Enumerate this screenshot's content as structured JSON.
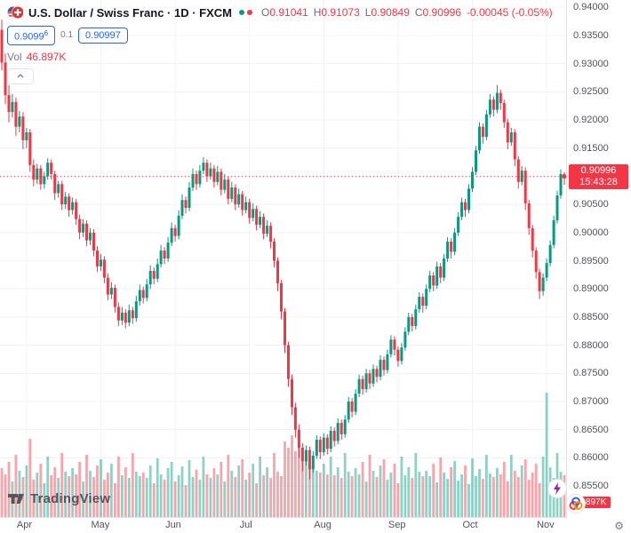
{
  "header": {
    "symbol_title": "U.S. Dollar / Swiss Franc · 1D · FXCM",
    "ohlc": {
      "o_label": "O",
      "o": "0.91041",
      "h_label": "H",
      "h": "0.91073",
      "l_label": "L",
      "l": "0.90849",
      "c_label": "C",
      "c": "0.90996",
      "change": "-0.00045 (-0.05%)"
    },
    "sell_price_main": "0.9099",
    "sell_price_sup": "6",
    "spread": "0.1",
    "buy_price": "0.90997",
    "vol_label": "Vol",
    "vol_value": "46.897K"
  },
  "price_scale": {
    "ticks": [
      0.94,
      0.935,
      0.93,
      0.925,
      0.92,
      0.915,
      0.91,
      0.905,
      0.9,
      0.895,
      0.89,
      0.885,
      0.88,
      0.875,
      0.87,
      0.865,
      0.86,
      0.855
    ],
    "current_price_label": "0.90996",
    "countdown": "15:43:28",
    "volume_axis_label": "46.897K"
  },
  "time_scale": {
    "months": [
      {
        "label": "Apr",
        "index": 7
      },
      {
        "label": "May",
        "index": 28
      },
      {
        "label": "Jun",
        "index": 49
      },
      {
        "label": "Jul",
        "index": 70
      },
      {
        "label": "Aug",
        "index": 91
      },
      {
        "label": "Sep",
        "index": 112
      },
      {
        "label": "Oct",
        "index": 133
      },
      {
        "label": "Nov",
        "index": 154
      }
    ]
  },
  "footer": {
    "logo_text": "TradingView"
  },
  "colors": {
    "up": "#089981",
    "down": "#f23645",
    "vol_up": "rgba(8,153,129,0.45)",
    "vol_down": "rgba(242,54,69,0.45)",
    "grid": "#f0f3fa",
    "accent_blue": "#2962ff",
    "label_red": "#f23645"
  },
  "chart_data": {
    "type": "candlestick",
    "symbol": "U.S. Dollar / Swiss Franc",
    "timeframe": "1D",
    "exchange": "FXCM",
    "price_min": 0.8495,
    "price_max": 0.9413,
    "current_price": 0.90996,
    "current_volume_k": 46.897,
    "candles": [
      [
        0.936,
        0.9378,
        0.9288,
        0.9302
      ],
      [
        0.9302,
        0.9318,
        0.9228,
        0.9244
      ],
      [
        0.9244,
        0.9262,
        0.9196,
        0.9214
      ],
      [
        0.9214,
        0.9246,
        0.9204,
        0.9232
      ],
      [
        0.9232,
        0.924,
        0.9172,
        0.9188
      ],
      [
        0.9188,
        0.9216,
        0.9178,
        0.9206
      ],
      [
        0.9206,
        0.9214,
        0.9148,
        0.9164
      ],
      [
        0.9164,
        0.9186,
        0.915,
        0.9178
      ],
      [
        0.9178,
        0.9184,
        0.9108,
        0.912
      ],
      [
        0.912,
        0.913,
        0.9082,
        0.9094
      ],
      [
        0.9094,
        0.9122,
        0.9086,
        0.9114
      ],
      [
        0.9114,
        0.912,
        0.9076,
        0.9086
      ],
      [
        0.9086,
        0.9108,
        0.9078,
        0.91
      ],
      [
        0.91,
        0.9132,
        0.9094,
        0.9124
      ],
      [
        0.9124,
        0.913,
        0.9094,
        0.9104
      ],
      [
        0.9104,
        0.911,
        0.9058,
        0.907
      ],
      [
        0.907,
        0.9092,
        0.9062,
        0.9086
      ],
      [
        0.9086,
        0.9092,
        0.904,
        0.905
      ],
      [
        0.905,
        0.9072,
        0.9042,
        0.9064
      ],
      [
        0.9064,
        0.907,
        0.9028,
        0.904
      ],
      [
        0.904,
        0.9062,
        0.9032,
        0.9054
      ],
      [
        0.9054,
        0.906,
        0.9014,
        0.9024
      ],
      [
        0.9024,
        0.9032,
        0.8988,
        0.9
      ],
      [
        0.9,
        0.9024,
        0.8992,
        0.9016
      ],
      [
        0.9016,
        0.9022,
        0.8976,
        0.8986
      ],
      [
        0.8986,
        0.9008,
        0.8978,
        0.9
      ],
      [
        0.9,
        0.9006,
        0.8958,
        0.8968
      ],
      [
        0.8968,
        0.8976,
        0.893,
        0.894
      ],
      [
        0.894,
        0.8962,
        0.8932,
        0.8952
      ],
      [
        0.8952,
        0.8958,
        0.891,
        0.892
      ],
      [
        0.892,
        0.8928,
        0.888,
        0.889
      ],
      [
        0.889,
        0.8912,
        0.8882,
        0.8902
      ],
      [
        0.8902,
        0.8908,
        0.8858,
        0.8868
      ],
      [
        0.8868,
        0.8876,
        0.8834,
        0.8844
      ],
      [
        0.8844,
        0.8868,
        0.8836,
        0.8858
      ],
      [
        0.8858,
        0.8864,
        0.883,
        0.884
      ],
      [
        0.884,
        0.8872,
        0.8834,
        0.8862
      ],
      [
        0.8862,
        0.8868,
        0.8838,
        0.8848
      ],
      [
        0.8848,
        0.8888,
        0.8842,
        0.8878
      ],
      [
        0.8878,
        0.8908,
        0.887,
        0.8898
      ],
      [
        0.8898,
        0.8904,
        0.8874,
        0.8884
      ],
      [
        0.8884,
        0.8918,
        0.8878,
        0.8908
      ],
      [
        0.8908,
        0.8942,
        0.89,
        0.8932
      ],
      [
        0.8932,
        0.8938,
        0.8908,
        0.8918
      ],
      [
        0.8918,
        0.8954,
        0.8912,
        0.8944
      ],
      [
        0.8944,
        0.8978,
        0.8938,
        0.8968
      ],
      [
        0.8968,
        0.8974,
        0.8944,
        0.8954
      ],
      [
        0.8954,
        0.8992,
        0.8948,
        0.8982
      ],
      [
        0.8982,
        0.9018,
        0.8976,
        0.9008
      ],
      [
        0.9008,
        0.9014,
        0.8984,
        0.8994
      ],
      [
        0.8994,
        0.904,
        0.8988,
        0.903
      ],
      [
        0.903,
        0.9068,
        0.9024,
        0.9058
      ],
      [
        0.9058,
        0.9064,
        0.9034,
        0.9044
      ],
      [
        0.9044,
        0.909,
        0.9038,
        0.908
      ],
      [
        0.908,
        0.9114,
        0.9074,
        0.9104
      ],
      [
        0.9104,
        0.911,
        0.9076,
        0.9086
      ],
      [
        0.9086,
        0.912,
        0.908,
        0.911
      ],
      [
        0.911,
        0.9134,
        0.9104,
        0.9124
      ],
      [
        0.9124,
        0.913,
        0.909,
        0.91
      ],
      [
        0.91,
        0.9124,
        0.9094,
        0.9114
      ],
      [
        0.9114,
        0.912,
        0.908,
        0.909
      ],
      [
        0.909,
        0.9118,
        0.9084,
        0.9108
      ],
      [
        0.9108,
        0.9114,
        0.9066,
        0.9076
      ],
      [
        0.9076,
        0.9104,
        0.907,
        0.9094
      ],
      [
        0.9094,
        0.91,
        0.905,
        0.906
      ],
      [
        0.906,
        0.909,
        0.9054,
        0.908
      ],
      [
        0.908,
        0.9086,
        0.904,
        0.905
      ],
      [
        0.905,
        0.9078,
        0.9044,
        0.9068
      ],
      [
        0.9068,
        0.9074,
        0.903,
        0.904
      ],
      [
        0.904,
        0.9064,
        0.9034,
        0.9054
      ],
      [
        0.9054,
        0.906,
        0.9016,
        0.9026
      ],
      [
        0.9026,
        0.9052,
        0.902,
        0.9042
      ],
      [
        0.9042,
        0.9048,
        0.9004,
        0.9014
      ],
      [
        0.9014,
        0.9038,
        0.9008,
        0.9028
      ],
      [
        0.9028,
        0.9034,
        0.8988,
        0.8998
      ],
      [
        0.8998,
        0.9022,
        0.8992,
        0.9012
      ],
      [
        0.9012,
        0.9018,
        0.8972,
        0.8984
      ],
      [
        0.8984,
        0.899,
        0.8938,
        0.895
      ],
      [
        0.895,
        0.8956,
        0.8896,
        0.891
      ],
      [
        0.891,
        0.8916,
        0.8846,
        0.886
      ],
      [
        0.886,
        0.8866,
        0.8786,
        0.88
      ],
      [
        0.88,
        0.8806,
        0.8726,
        0.874
      ],
      [
        0.874,
        0.8748,
        0.8676,
        0.869
      ],
      [
        0.869,
        0.8698,
        0.8636,
        0.865
      ],
      [
        0.865,
        0.866,
        0.86,
        0.8618
      ],
      [
        0.8618,
        0.8626,
        0.8576,
        0.8594
      ],
      [
        0.8594,
        0.8622,
        0.8586,
        0.8614
      ],
      [
        0.8614,
        0.862,
        0.8562,
        0.858
      ],
      [
        0.858,
        0.8612,
        0.8574,
        0.8604
      ],
      [
        0.8604,
        0.864,
        0.8598,
        0.8632
      ],
      [
        0.8632,
        0.8638,
        0.8598,
        0.861
      ],
      [
        0.861,
        0.8644,
        0.8604,
        0.8636
      ],
      [
        0.8636,
        0.8642,
        0.8606,
        0.8616
      ],
      [
        0.8616,
        0.8656,
        0.861,
        0.8648
      ],
      [
        0.8648,
        0.8654,
        0.862,
        0.863
      ],
      [
        0.863,
        0.867,
        0.8624,
        0.8662
      ],
      [
        0.8662,
        0.8668,
        0.8632,
        0.8642
      ],
      [
        0.8642,
        0.8676,
        0.8636,
        0.8668
      ],
      [
        0.8668,
        0.8708,
        0.8662,
        0.87
      ],
      [
        0.87,
        0.8706,
        0.8672,
        0.8682
      ],
      [
        0.8682,
        0.8722,
        0.8676,
        0.8714
      ],
      [
        0.8714,
        0.8748,
        0.8708,
        0.874
      ],
      [
        0.874,
        0.8746,
        0.8712,
        0.8722
      ],
      [
        0.8722,
        0.8758,
        0.8716,
        0.875
      ],
      [
        0.875,
        0.8756,
        0.8722,
        0.8732
      ],
      [
        0.8732,
        0.8766,
        0.8726,
        0.8758
      ],
      [
        0.8758,
        0.8764,
        0.8734,
        0.8744
      ],
      [
        0.8744,
        0.8782,
        0.8738,
        0.8774
      ],
      [
        0.8774,
        0.878,
        0.8746,
        0.8756
      ],
      [
        0.8756,
        0.8792,
        0.875,
        0.8784
      ],
      [
        0.8784,
        0.8818,
        0.8778,
        0.881
      ],
      [
        0.881,
        0.8816,
        0.8782,
        0.8792
      ],
      [
        0.8792,
        0.8798,
        0.8762,
        0.8772
      ],
      [
        0.8772,
        0.8804,
        0.8766,
        0.8796
      ],
      [
        0.8796,
        0.8832,
        0.879,
        0.8824
      ],
      [
        0.8824,
        0.8858,
        0.8818,
        0.885
      ],
      [
        0.885,
        0.8856,
        0.8824,
        0.8834
      ],
      [
        0.8834,
        0.8872,
        0.8828,
        0.8864
      ],
      [
        0.8864,
        0.8894,
        0.8858,
        0.8886
      ],
      [
        0.8886,
        0.8892,
        0.8858,
        0.887
      ],
      [
        0.887,
        0.8908,
        0.8864,
        0.89
      ],
      [
        0.89,
        0.8932,
        0.8894,
        0.8924
      ],
      [
        0.8924,
        0.893,
        0.8896,
        0.8906
      ],
      [
        0.8906,
        0.8948,
        0.89,
        0.894
      ],
      [
        0.894,
        0.8946,
        0.891,
        0.892
      ],
      [
        0.892,
        0.8962,
        0.8914,
        0.8954
      ],
      [
        0.8954,
        0.8992,
        0.8948,
        0.8984
      ],
      [
        0.8984,
        0.899,
        0.8954,
        0.8966
      ],
      [
        0.8966,
        0.9008,
        0.896,
        0.9
      ],
      [
        0.9,
        0.9036,
        0.8994,
        0.9028
      ],
      [
        0.9028,
        0.9062,
        0.9022,
        0.9054
      ],
      [
        0.9054,
        0.906,
        0.9028,
        0.904
      ],
      [
        0.904,
        0.9086,
        0.9034,
        0.9078
      ],
      [
        0.9078,
        0.9116,
        0.9072,
        0.9108
      ],
      [
        0.9108,
        0.9154,
        0.9102,
        0.9146
      ],
      [
        0.9146,
        0.9196,
        0.914,
        0.9188
      ],
      [
        0.9188,
        0.9194,
        0.9158,
        0.917
      ],
      [
        0.917,
        0.9218,
        0.9164,
        0.921
      ],
      [
        0.921,
        0.9246,
        0.9204,
        0.9236
      ],
      [
        0.9236,
        0.9242,
        0.9206,
        0.9218
      ],
      [
        0.9218,
        0.9262,
        0.9212,
        0.9248
      ],
      [
        0.9248,
        0.9254,
        0.9218,
        0.923
      ],
      [
        0.923,
        0.9236,
        0.9186,
        0.9196
      ],
      [
        0.9196,
        0.9202,
        0.9148,
        0.916
      ],
      [
        0.916,
        0.9186,
        0.9154,
        0.9178
      ],
      [
        0.9178,
        0.9184,
        0.9118,
        0.913
      ],
      [
        0.913,
        0.9136,
        0.9078,
        0.909
      ],
      [
        0.909,
        0.9118,
        0.9084,
        0.911
      ],
      [
        0.911,
        0.9116,
        0.904,
        0.9052
      ],
      [
        0.9052,
        0.9058,
        0.8996,
        0.9008
      ],
      [
        0.9008,
        0.9014,
        0.8956,
        0.8968
      ],
      [
        0.8968,
        0.8974,
        0.8918,
        0.893
      ],
      [
        0.893,
        0.8936,
        0.8882,
        0.8896
      ],
      [
        0.8896,
        0.8928,
        0.8888,
        0.892
      ],
      [
        0.892,
        0.8954,
        0.8914,
        0.8946
      ],
      [
        0.8946,
        0.8986,
        0.894,
        0.8978
      ],
      [
        0.8978,
        0.903,
        0.8972,
        0.9022
      ],
      [
        0.9022,
        0.9074,
        0.9016,
        0.9066
      ],
      [
        0.9066,
        0.9112,
        0.906,
        0.9104
      ],
      [
        0.91041,
        0.91073,
        0.90849,
        0.90996
      ]
    ],
    "volumes_k": [
      55,
      48,
      62,
      40,
      70,
      52,
      45,
      58,
      88,
      42,
      50,
      60,
      38,
      68,
      47,
      56,
      44,
      72,
      51,
      46,
      55,
      48,
      62,
      40,
      70,
      52,
      45,
      58,
      65,
      42,
      50,
      60,
      38,
      68,
      47,
      56,
      44,
      72,
      51,
      46,
      50,
      44,
      58,
      38,
      66,
      48,
      42,
      55,
      62,
      40,
      47,
      57,
      36,
      64,
      45,
      53,
      42,
      68,
      48,
      44,
      55,
      48,
      62,
      40,
      70,
      52,
      45,
      58,
      65,
      42,
      50,
      60,
      38,
      68,
      47,
      56,
      44,
      72,
      51,
      46,
      85,
      78,
      92,
      74,
      82,
      68,
      74,
      58,
      66,
      52,
      50,
      60,
      48,
      68,
      47,
      56,
      44,
      72,
      51,
      46,
      55,
      48,
      62,
      40,
      70,
      52,
      45,
      58,
      65,
      42,
      50,
      60,
      38,
      68,
      47,
      56,
      44,
      72,
      51,
      46,
      52,
      46,
      60,
      39,
      67,
      50,
      43,
      56,
      63,
      41,
      48,
      58,
      37,
      66,
      46,
      54,
      43,
      70,
      49,
      45,
      55,
      48,
      62,
      40,
      70,
      52,
      45,
      58,
      65,
      42,
      50,
      60,
      38,
      68,
      140,
      56,
      44,
      72,
      51,
      47
    ]
  }
}
